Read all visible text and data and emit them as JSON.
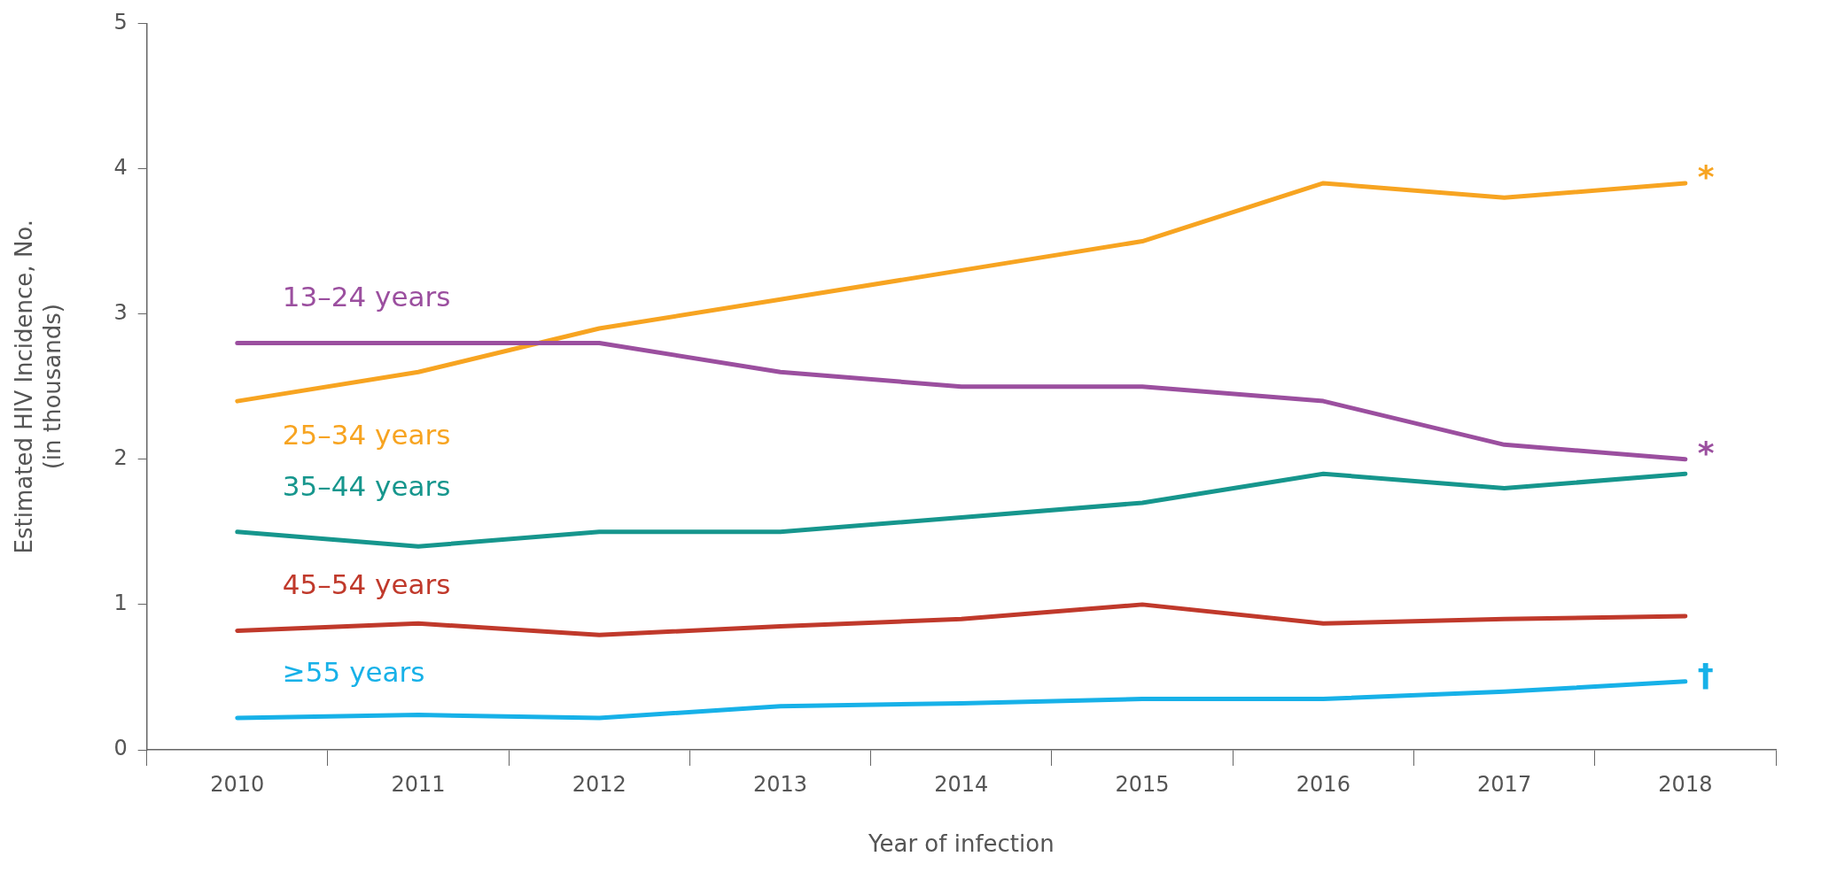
{
  "chart_data": {
    "type": "line",
    "xlabel": "Year of infection",
    "ylabel": "Estimated HIV Incidence, No.\n(in thousands)",
    "categories": [
      "2010",
      "2011",
      "2012",
      "2013",
      "2014",
      "2015",
      "2016",
      "2017",
      "2018"
    ],
    "series": [
      {
        "name": "13–24 years",
        "color": "#9b4f9f",
        "values": [
          2.8,
          2.8,
          2.8,
          2.6,
          2.5,
          2.5,
          2.4,
          2.1,
          2.0
        ]
      },
      {
        "name": "25–34 years",
        "color": "#f7a421",
        "values": [
          2.4,
          2.6,
          2.9,
          3.1,
          3.3,
          3.5,
          3.9,
          3.8,
          3.9
        ]
      },
      {
        "name": "35–44 years",
        "color": "#16968d",
        "values": [
          1.5,
          1.4,
          1.5,
          1.5,
          1.6,
          1.7,
          1.9,
          1.8,
          1.9
        ]
      },
      {
        "name": "45–54 years",
        "color": "#c0392b",
        "values": [
          0.82,
          0.87,
          0.79,
          0.85,
          0.9,
          1.0,
          0.87,
          0.9,
          0.92
        ]
      },
      {
        "name": "≥55 years",
        "color": "#17b1e8",
        "values": [
          0.22,
          0.24,
          0.22,
          0.3,
          0.32,
          0.35,
          0.35,
          0.4,
          0.47
        ]
      }
    ],
    "ylim": [
      0,
      5
    ],
    "yticks": [
      0,
      1,
      2,
      3,
      4,
      5
    ],
    "grid": false,
    "legend": false,
    "marker": "none",
    "line_style": "solid",
    "annotations": [
      {
        "text": "*",
        "x": "2018",
        "y": 3.9
      },
      {
        "text": "*",
        "x": "2018",
        "y": 2.0
      },
      {
        "text": "†",
        "x": "2018",
        "y": 0.47
      }
    ]
  }
}
